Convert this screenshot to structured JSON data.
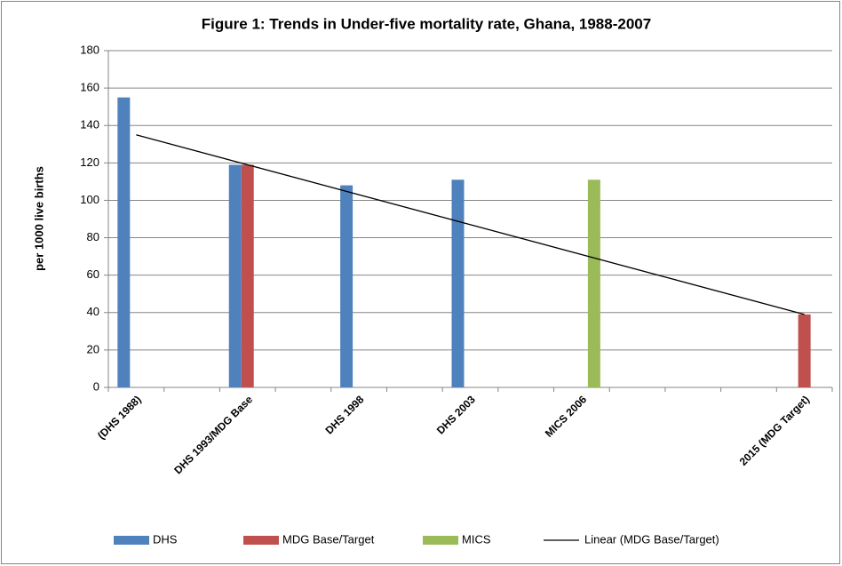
{
  "chart_data": {
    "type": "bar",
    "title": "Figure 1: Trends in Under-five mortality rate, Ghana, 1988-2007",
    "y_label": "per 1000 live births",
    "categories": [
      "(DHS 1988)",
      null,
      "DHS 1993/MDG Base",
      null,
      "DHS 1998",
      null,
      "DHS 2003",
      null,
      "MICS 2006",
      null,
      null,
      null,
      "2015 (MDG Target)"
    ],
    "series": [
      {
        "name": "DHS",
        "color": "#4f81bd",
        "values": [
          155,
          null,
          119,
          null,
          108,
          null,
          111,
          null,
          null,
          null,
          null,
          null,
          null
        ]
      },
      {
        "name": "MDG Base/Target",
        "color": "#c0504d",
        "values": [
          null,
          null,
          119,
          null,
          null,
          null,
          null,
          null,
          null,
          null,
          null,
          null,
          39
        ]
      },
      {
        "name": "MICS",
        "color": "#9bbb59",
        "values": [
          null,
          null,
          null,
          null,
          null,
          null,
          null,
          null,
          111,
          null,
          null,
          null,
          null
        ]
      }
    ],
    "trendline": {
      "name": "Linear (MDG Base/Target)",
      "series": 1,
      "color": "#000000"
    },
    "ylim": [
      0,
      180
    ],
    "yticks": [
      0,
      20,
      40,
      60,
      80,
      100,
      120,
      140,
      160,
      180
    ],
    "grid": true,
    "legend": "bottom"
  }
}
